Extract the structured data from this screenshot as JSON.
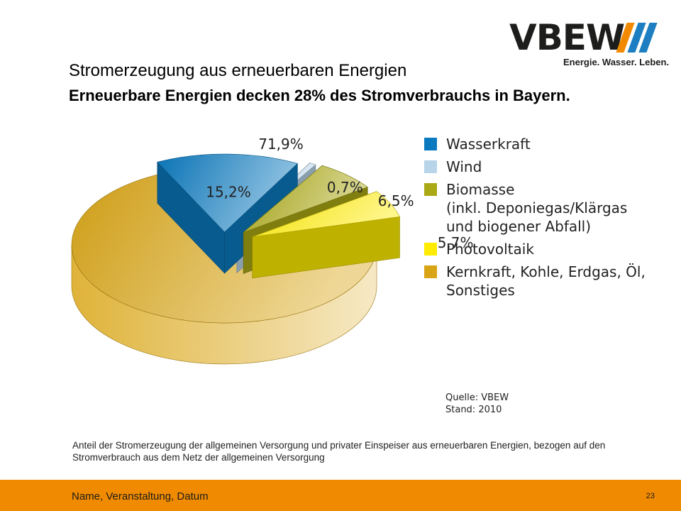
{
  "logo": {
    "word": "VBEW",
    "tagline": "Energie. Wasser. Leben."
  },
  "slide": {
    "title": "Stromerzeugung aus erneuerbaren Energien",
    "subtitle": "Erneuerbare Energien decken 28% des Stromverbrauchs in Bayern.",
    "note": "Anteil der Stromerzeugung der allgemeinen Versorgung und privater Einspeiser aus erneuerbaren Energien, bezogen auf den Stromverbrauch aus dem Netz der allgemeinen Versorgung",
    "source": "Quelle: VBEW",
    "stand": "Stand: 2010"
  },
  "chart_data": {
    "type": "pie",
    "style": "3d-exploded",
    "slices": [
      {
        "label": "Kernkraft, Kohle, Erdgas, Öl, Sonstiges",
        "value": 71.9,
        "value_label": "71,9%",
        "color": "#d9a516"
      },
      {
        "label": "Wasserkraft",
        "value": 15.2,
        "value_label": "15,2%",
        "color": "#0a79bf"
      },
      {
        "label": "Wind",
        "value": 0.7,
        "value_label": "0,7%",
        "color": "#b8d4e8"
      },
      {
        "label": "Biomasse\n(inkl. Deponiegas/Klärgas\nund biogener Abfall)",
        "value": 6.5,
        "value_label": "6,5%",
        "color": "#aaa814"
      },
      {
        "label": "Photovoltaik",
        "value": 5.7,
        "value_label": "5,7%",
        "color": "#ffec00"
      }
    ],
    "legend": [
      {
        "label": "Wasserkraft",
        "color": "#0a79bf"
      },
      {
        "label": "Wind",
        "color": "#b8d4e8"
      },
      {
        "label": "Biomasse\n(inkl. Deponiegas/Klärgas\nund biogener Abfall)",
        "color": "#aaa814"
      },
      {
        "label": "Photovoltaik",
        "color": "#ffec00"
      },
      {
        "label": "Kernkraft, Kohle, Erdgas, Öl,\nSonstiges",
        "color": "#d9a516"
      }
    ],
    "legend_position": "right"
  },
  "footer": {
    "text": "Name, Veranstaltung, Datum",
    "page": "23",
    "color": "#f08a00"
  }
}
